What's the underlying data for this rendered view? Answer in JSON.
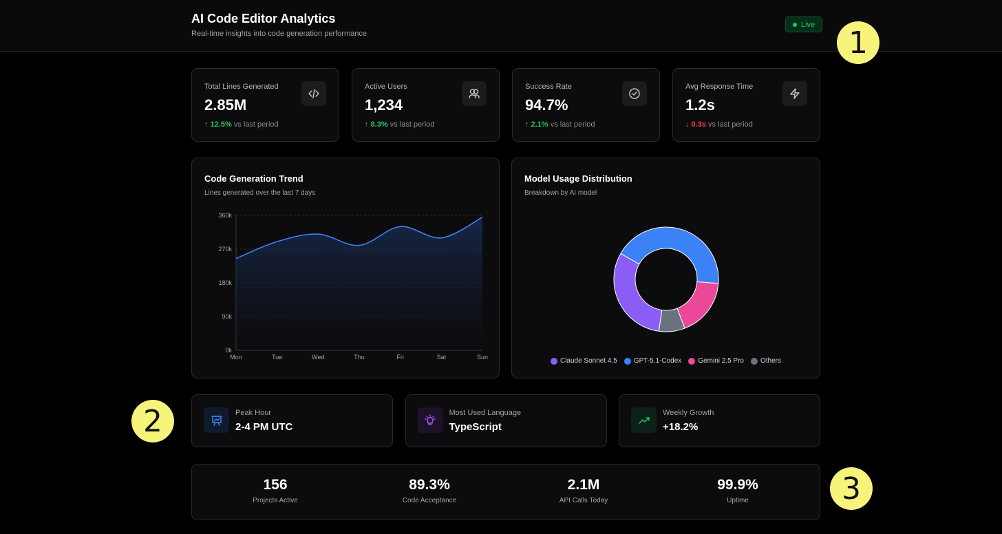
{
  "header": {
    "title": "AI Code Editor Analytics",
    "subtitle": "Real-time insights into code generation performance",
    "live": "Live"
  },
  "stats": [
    {
      "label": "Total Lines Generated",
      "value": "2.85M",
      "change": "↑ 12.5%",
      "direction": "up",
      "suffix": "vs last period",
      "icon": "code-icon"
    },
    {
      "label": "Active Users",
      "value": "1,234",
      "change": "↑ 8.3%",
      "direction": "up",
      "suffix": "vs last period",
      "icon": "users-icon"
    },
    {
      "label": "Success Rate",
      "value": "94.7%",
      "change": "↑ 2.1%",
      "direction": "up",
      "suffix": "vs last period",
      "icon": "check-circle-icon"
    },
    {
      "label": "Avg Response Time",
      "value": "1.2s",
      "change": "↓ 0.3s",
      "direction": "down",
      "suffix": "vs last period",
      "icon": "lightning-icon"
    }
  ],
  "chart_data": [
    {
      "type": "area",
      "title": "Code Generation Trend",
      "subtitle": "Lines generated over the last 7 days",
      "categories": [
        "Mon",
        "Tue",
        "Wed",
        "Thu",
        "Fri",
        "Sat",
        "Sun"
      ],
      "values": [
        245000,
        290000,
        310000,
        280000,
        330000,
        300000,
        355000
      ],
      "yticks": [
        "0k",
        "90k",
        "180k",
        "270k",
        "360k"
      ],
      "ylim": [
        0,
        360000
      ],
      "color": "#3b82f6",
      "grid": true
    },
    {
      "type": "pie",
      "title": "Model Usage Distribution",
      "subtitle": "Breakdown by AI model",
      "labels": [
        "Claude Sonnet 4.5",
        "GPT-5.1-Codex",
        "Gemini 2.5 Pro",
        "Others"
      ],
      "values": [
        31,
        43,
        18,
        8
      ],
      "colors": [
        "#8b5cf6",
        "#3b82f6",
        "#ec4899",
        "#6b7280"
      ],
      "legend": "bottom"
    }
  ],
  "insights": [
    {
      "label": "Peak Hour",
      "value": "2-4 PM UTC",
      "icon": "presentation-chart-icon",
      "color": "#3b82f6",
      "bg": "#0f1a2b"
    },
    {
      "label": "Most Used Language",
      "value": "TypeScript",
      "icon": "lightbulb-icon",
      "color": "#a855f7",
      "bg": "#1d1228"
    },
    {
      "label": "Weekly Growth",
      "value": "+18.2%",
      "icon": "trending-up-icon",
      "color": "#22c55e",
      "bg": "#0c2119"
    }
  ],
  "summary": [
    {
      "value": "156",
      "label": "Projects Active"
    },
    {
      "value": "89.3%",
      "label": "Code Acceptance"
    },
    {
      "value": "2.1M",
      "label": "API Calls Today"
    },
    {
      "value": "99.9%",
      "label": "Uptime"
    }
  ],
  "annotations": [
    "1",
    "2",
    "3"
  ]
}
